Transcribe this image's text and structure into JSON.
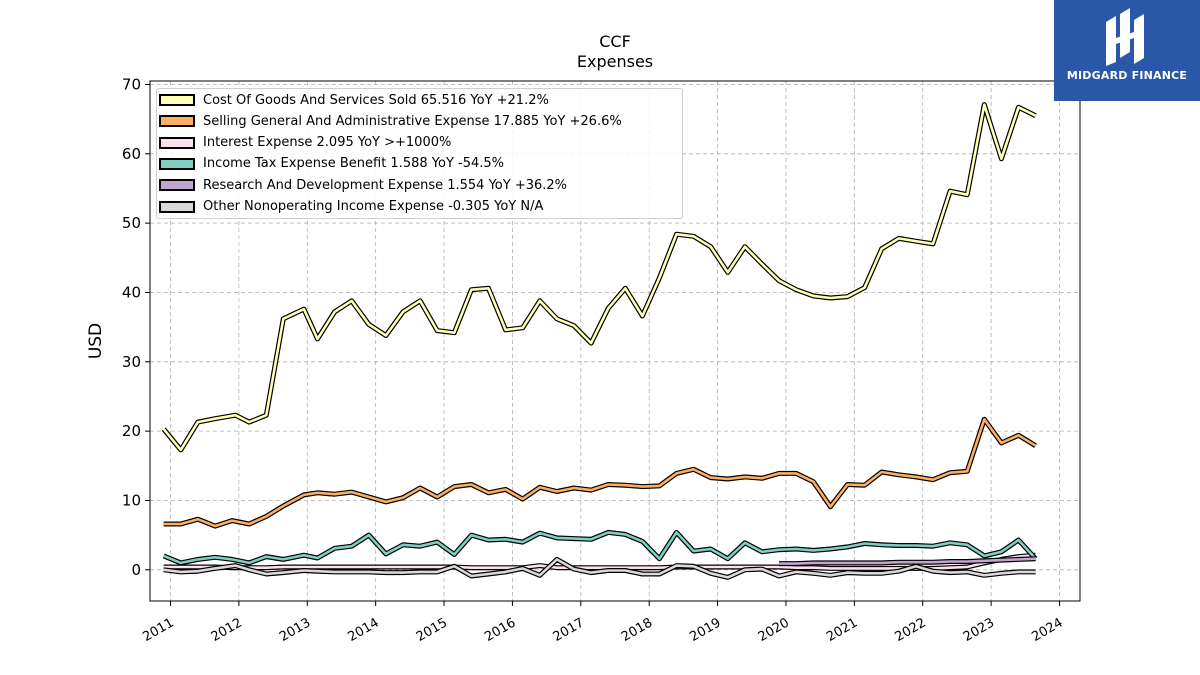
{
  "title_line1": "CCF",
  "title_line2": "Expenses",
  "brand": {
    "name": "MIDGARD FINANCE",
    "logo_icon": "midgard-finance-logo-icon",
    "color": "#2a57a8"
  },
  "chart_data": {
    "type": "line",
    "title": "CCF Expenses",
    "ylabel": "USD",
    "xlabel": "",
    "ylim": [
      -4.5,
      70.5
    ],
    "yticks": [
      0,
      10,
      20,
      30,
      40,
      50,
      60,
      70
    ],
    "xlim": [
      2010.7,
      2024.3
    ],
    "xticks": [
      "2011",
      "2012",
      "2013",
      "2014",
      "2015",
      "2016",
      "2017",
      "2018",
      "2019",
      "2020",
      "2021",
      "2022",
      "2023",
      "2024"
    ],
    "grid": true,
    "legend_position": "upper-left",
    "series": [
      {
        "name": "Cost Of Goods And Services Sold",
        "legend_label": "Cost Of Goods And Services Sold  65.516 YoY +21.2%",
        "color": "#ffffb2",
        "points": [
          [
            2010.9,
            20.3
          ],
          [
            2011.15,
            17.3
          ],
          [
            2011.4,
            21.3
          ],
          [
            2011.65,
            21.8
          ],
          [
            2011.95,
            22.3
          ],
          [
            2012.15,
            21.3
          ],
          [
            2012.4,
            22.3
          ],
          [
            2012.65,
            36.2
          ],
          [
            2012.95,
            37.6
          ],
          [
            2013.15,
            33.3
          ],
          [
            2013.4,
            37.2
          ],
          [
            2013.65,
            38.8
          ],
          [
            2013.9,
            35.4
          ],
          [
            2014.15,
            33.8
          ],
          [
            2014.4,
            37.2
          ],
          [
            2014.65,
            38.8
          ],
          [
            2014.9,
            34.5
          ],
          [
            2015.15,
            34.2
          ],
          [
            2015.4,
            40.4
          ],
          [
            2015.65,
            40.6
          ],
          [
            2015.9,
            34.6
          ],
          [
            2016.15,
            34.9
          ],
          [
            2016.4,
            38.8
          ],
          [
            2016.65,
            36.2
          ],
          [
            2016.9,
            35.2
          ],
          [
            2017.15,
            32.7
          ],
          [
            2017.4,
            37.7
          ],
          [
            2017.65,
            40.6
          ],
          [
            2017.9,
            36.6
          ],
          [
            2018.15,
            42.1
          ],
          [
            2018.4,
            48.4
          ],
          [
            2018.65,
            48.1
          ],
          [
            2018.9,
            46.6
          ],
          [
            2019.15,
            42.9
          ],
          [
            2019.4,
            46.6
          ],
          [
            2019.65,
            44.1
          ],
          [
            2019.9,
            41.7
          ],
          [
            2020.15,
            40.4
          ],
          [
            2020.4,
            39.5
          ],
          [
            2020.65,
            39.2
          ],
          [
            2020.9,
            39.4
          ],
          [
            2021.15,
            40.7
          ],
          [
            2021.4,
            46.3
          ],
          [
            2021.65,
            47.8
          ],
          [
            2021.9,
            47.4
          ],
          [
            2022.15,
            47.0
          ],
          [
            2022.4,
            54.6
          ],
          [
            2022.65,
            54.1
          ],
          [
            2022.9,
            67.1
          ],
          [
            2023.15,
            59.3
          ],
          [
            2023.4,
            66.7
          ],
          [
            2023.65,
            65.5
          ]
        ]
      },
      {
        "name": "Selling General And Administrative Expense",
        "legend_label": "Selling General And Administrative Expense  17.885 YoY +26.6%",
        "color": "#fdae61",
        "points": [
          [
            2010.9,
            6.6
          ],
          [
            2011.15,
            6.6
          ],
          [
            2011.4,
            7.3
          ],
          [
            2011.65,
            6.3
          ],
          [
            2011.9,
            7.1
          ],
          [
            2012.15,
            6.6
          ],
          [
            2012.4,
            7.7
          ],
          [
            2012.65,
            9.2
          ],
          [
            2012.95,
            10.8
          ],
          [
            2013.15,
            11.1
          ],
          [
            2013.4,
            10.9
          ],
          [
            2013.65,
            11.2
          ],
          [
            2013.9,
            10.5
          ],
          [
            2014.15,
            9.8
          ],
          [
            2014.4,
            10.4
          ],
          [
            2014.65,
            11.8
          ],
          [
            2014.9,
            10.5
          ],
          [
            2015.15,
            12.0
          ],
          [
            2015.4,
            12.3
          ],
          [
            2015.65,
            11.1
          ],
          [
            2015.9,
            11.6
          ],
          [
            2016.15,
            10.2
          ],
          [
            2016.4,
            11.9
          ],
          [
            2016.65,
            11.3
          ],
          [
            2016.9,
            11.8
          ],
          [
            2017.15,
            11.5
          ],
          [
            2017.4,
            12.3
          ],
          [
            2017.65,
            12.2
          ],
          [
            2017.9,
            12.0
          ],
          [
            2018.15,
            12.1
          ],
          [
            2018.4,
            13.9
          ],
          [
            2018.65,
            14.5
          ],
          [
            2018.9,
            13.3
          ],
          [
            2019.15,
            13.1
          ],
          [
            2019.4,
            13.4
          ],
          [
            2019.65,
            13.2
          ],
          [
            2019.9,
            13.9
          ],
          [
            2020.15,
            13.9
          ],
          [
            2020.4,
            12.7
          ],
          [
            2020.65,
            9.1
          ],
          [
            2020.9,
            12.3
          ],
          [
            2021.15,
            12.2
          ],
          [
            2021.4,
            14.1
          ],
          [
            2021.65,
            13.7
          ],
          [
            2021.9,
            13.4
          ],
          [
            2022.15,
            13.0
          ],
          [
            2022.4,
            14.0
          ],
          [
            2022.65,
            14.2
          ],
          [
            2022.9,
            21.7
          ],
          [
            2023.15,
            18.3
          ],
          [
            2023.4,
            19.4
          ],
          [
            2023.65,
            17.9
          ]
        ]
      },
      {
        "name": "Interest Expense",
        "legend_label": "Interest Expense  2.095 YoY >+1000%",
        "color": "#fde0ef",
        "points": [
          [
            2010.9,
            0.4
          ],
          [
            2011.15,
            0.4
          ],
          [
            2011.4,
            0.4
          ],
          [
            2011.65,
            0.4
          ],
          [
            2011.9,
            0.3
          ],
          [
            2012.15,
            0.3
          ],
          [
            2012.4,
            0.3
          ],
          [
            2012.65,
            0.4
          ],
          [
            2012.95,
            0.4
          ],
          [
            2013.15,
            0.4
          ],
          [
            2013.4,
            0.4
          ],
          [
            2013.65,
            0.4
          ],
          [
            2013.9,
            0.4
          ],
          [
            2014.15,
            0.4
          ],
          [
            2014.4,
            0.4
          ],
          [
            2014.65,
            0.4
          ],
          [
            2014.9,
            0.4
          ],
          [
            2015.15,
            0.4
          ],
          [
            2015.4,
            0.3
          ],
          [
            2015.65,
            0.3
          ],
          [
            2015.9,
            0.3
          ],
          [
            2016.15,
            0.3
          ],
          [
            2016.4,
            0.6
          ],
          [
            2016.65,
            0.3
          ],
          [
            2016.9,
            0.3
          ],
          [
            2017.15,
            0.3
          ],
          [
            2017.4,
            0.3
          ],
          [
            2017.65,
            0.3
          ],
          [
            2017.9,
            0.3
          ],
          [
            2018.15,
            0.3
          ],
          [
            2018.4,
            0.4
          ],
          [
            2018.65,
            0.4
          ],
          [
            2018.9,
            0.4
          ],
          [
            2019.15,
            0.4
          ],
          [
            2019.4,
            0.4
          ],
          [
            2019.65,
            0.4
          ],
          [
            2019.9,
            0.4
          ],
          [
            2020.15,
            0.3
          ],
          [
            2020.4,
            0.3
          ],
          [
            2020.65,
            0.2
          ],
          [
            2020.9,
            0.2
          ],
          [
            2021.15,
            0.2
          ],
          [
            2021.4,
            0.2
          ],
          [
            2021.65,
            0.2
          ],
          [
            2021.9,
            0.2
          ],
          [
            2022.15,
            0.2
          ],
          [
            2022.4,
            0.3
          ],
          [
            2022.65,
            0.4
          ],
          [
            2022.9,
            1.0
          ],
          [
            2023.15,
            1.5
          ],
          [
            2023.4,
            1.9
          ],
          [
            2023.65,
            2.1
          ]
        ]
      },
      {
        "name": "Income Tax Expense Benefit",
        "legend_label": "Income Tax Expense Benefit  1.588 YoY -54.5%",
        "color": "#80cdc1",
        "points": [
          [
            2010.9,
            2.0
          ],
          [
            2011.15,
            1.0
          ],
          [
            2011.4,
            1.5
          ],
          [
            2011.65,
            1.8
          ],
          [
            2011.9,
            1.5
          ],
          [
            2012.15,
            1.0
          ],
          [
            2012.4,
            1.9
          ],
          [
            2012.65,
            1.5
          ],
          [
            2012.95,
            2.1
          ],
          [
            2013.15,
            1.7
          ],
          [
            2013.4,
            3.1
          ],
          [
            2013.65,
            3.4
          ],
          [
            2013.9,
            5.0
          ],
          [
            2014.15,
            2.3
          ],
          [
            2014.4,
            3.6
          ],
          [
            2014.65,
            3.4
          ],
          [
            2014.9,
            4.0
          ],
          [
            2015.15,
            2.2
          ],
          [
            2015.4,
            5.0
          ],
          [
            2015.65,
            4.3
          ],
          [
            2015.9,
            4.4
          ],
          [
            2016.15,
            4.0
          ],
          [
            2016.4,
            5.3
          ],
          [
            2016.65,
            4.6
          ],
          [
            2016.9,
            4.5
          ],
          [
            2017.15,
            4.4
          ],
          [
            2017.4,
            5.4
          ],
          [
            2017.65,
            5.1
          ],
          [
            2017.9,
            4.1
          ],
          [
            2018.15,
            1.6
          ],
          [
            2018.4,
            5.4
          ],
          [
            2018.65,
            2.7
          ],
          [
            2018.9,
            3.0
          ],
          [
            2019.15,
            1.6
          ],
          [
            2019.4,
            3.9
          ],
          [
            2019.65,
            2.6
          ],
          [
            2019.9,
            2.9
          ],
          [
            2020.15,
            3.0
          ],
          [
            2020.4,
            2.8
          ],
          [
            2020.65,
            3.0
          ],
          [
            2020.9,
            3.3
          ],
          [
            2021.15,
            3.8
          ],
          [
            2021.4,
            3.6
          ],
          [
            2021.65,
            3.5
          ],
          [
            2021.9,
            3.5
          ],
          [
            2022.15,
            3.4
          ],
          [
            2022.4,
            3.9
          ],
          [
            2022.65,
            3.6
          ],
          [
            2022.9,
            2.0
          ],
          [
            2023.15,
            2.6
          ],
          [
            2023.4,
            4.3
          ],
          [
            2023.65,
            1.6
          ]
        ]
      },
      {
        "name": "Research And Development Expense",
        "legend_label": "Research And Development Expense  1.554 YoY +36.2%",
        "color": "#c2a5cf",
        "points": [
          [
            2019.9,
            0.9
          ],
          [
            2020.15,
            0.9
          ],
          [
            2020.4,
            1.0
          ],
          [
            2020.65,
            1.0
          ],
          [
            2020.9,
            1.0
          ],
          [
            2021.15,
            1.0
          ],
          [
            2021.4,
            1.0
          ],
          [
            2021.65,
            1.1
          ],
          [
            2021.9,
            1.1
          ],
          [
            2022.15,
            1.1
          ],
          [
            2022.4,
            1.2
          ],
          [
            2022.65,
            1.2
          ],
          [
            2022.9,
            1.3
          ],
          [
            2023.15,
            1.4
          ],
          [
            2023.4,
            1.5
          ],
          [
            2023.65,
            1.6
          ]
        ]
      },
      {
        "name": "Other Nonoperating Income Expense",
        "legend_label": "Other Nonoperating Income Expense  -0.305 YoY N/A",
        "color": "#d9d9d9",
        "points": [
          [
            2010.9,
            0.0
          ],
          [
            2011.15,
            -0.3
          ],
          [
            2011.4,
            -0.2
          ],
          [
            2011.65,
            0.2
          ],
          [
            2011.95,
            0.6
          ],
          [
            2012.15,
            0.0
          ],
          [
            2012.4,
            -0.6
          ],
          [
            2012.65,
            -0.4
          ],
          [
            2012.95,
            -0.1
          ],
          [
            2013.15,
            -0.2
          ],
          [
            2013.4,
            -0.3
          ],
          [
            2013.65,
            -0.3
          ],
          [
            2013.9,
            -0.3
          ],
          [
            2014.15,
            -0.4
          ],
          [
            2014.4,
            -0.4
          ],
          [
            2014.65,
            -0.3
          ],
          [
            2014.9,
            -0.3
          ],
          [
            2015.15,
            0.5
          ],
          [
            2015.4,
            -0.9
          ],
          [
            2015.65,
            -0.6
          ],
          [
            2015.9,
            -0.3
          ],
          [
            2016.15,
            0.2
          ],
          [
            2016.4,
            -0.8
          ],
          [
            2016.65,
            1.5
          ],
          [
            2016.9,
            0.1
          ],
          [
            2017.15,
            -0.4
          ],
          [
            2017.4,
            -0.1
          ],
          [
            2017.65,
            -0.1
          ],
          [
            2017.9,
            -0.6
          ],
          [
            2018.15,
            -0.6
          ],
          [
            2018.4,
            0.6
          ],
          [
            2018.65,
            0.5
          ],
          [
            2018.9,
            -0.5
          ],
          [
            2019.15,
            -1.1
          ],
          [
            2019.4,
            0.0
          ],
          [
            2019.65,
            0.1
          ],
          [
            2019.9,
            -0.9
          ],
          [
            2020.15,
            -0.3
          ],
          [
            2020.4,
            -0.5
          ],
          [
            2020.65,
            -0.8
          ],
          [
            2020.9,
            -0.4
          ],
          [
            2021.15,
            -0.5
          ],
          [
            2021.4,
            -0.5
          ],
          [
            2021.65,
            -0.2
          ],
          [
            2021.9,
            0.5
          ],
          [
            2022.15,
            -0.2
          ],
          [
            2022.4,
            -0.4
          ],
          [
            2022.65,
            -0.3
          ],
          [
            2022.9,
            -0.8
          ],
          [
            2023.15,
            -0.5
          ],
          [
            2023.4,
            -0.3
          ],
          [
            2023.65,
            -0.3
          ]
        ]
      }
    ]
  }
}
